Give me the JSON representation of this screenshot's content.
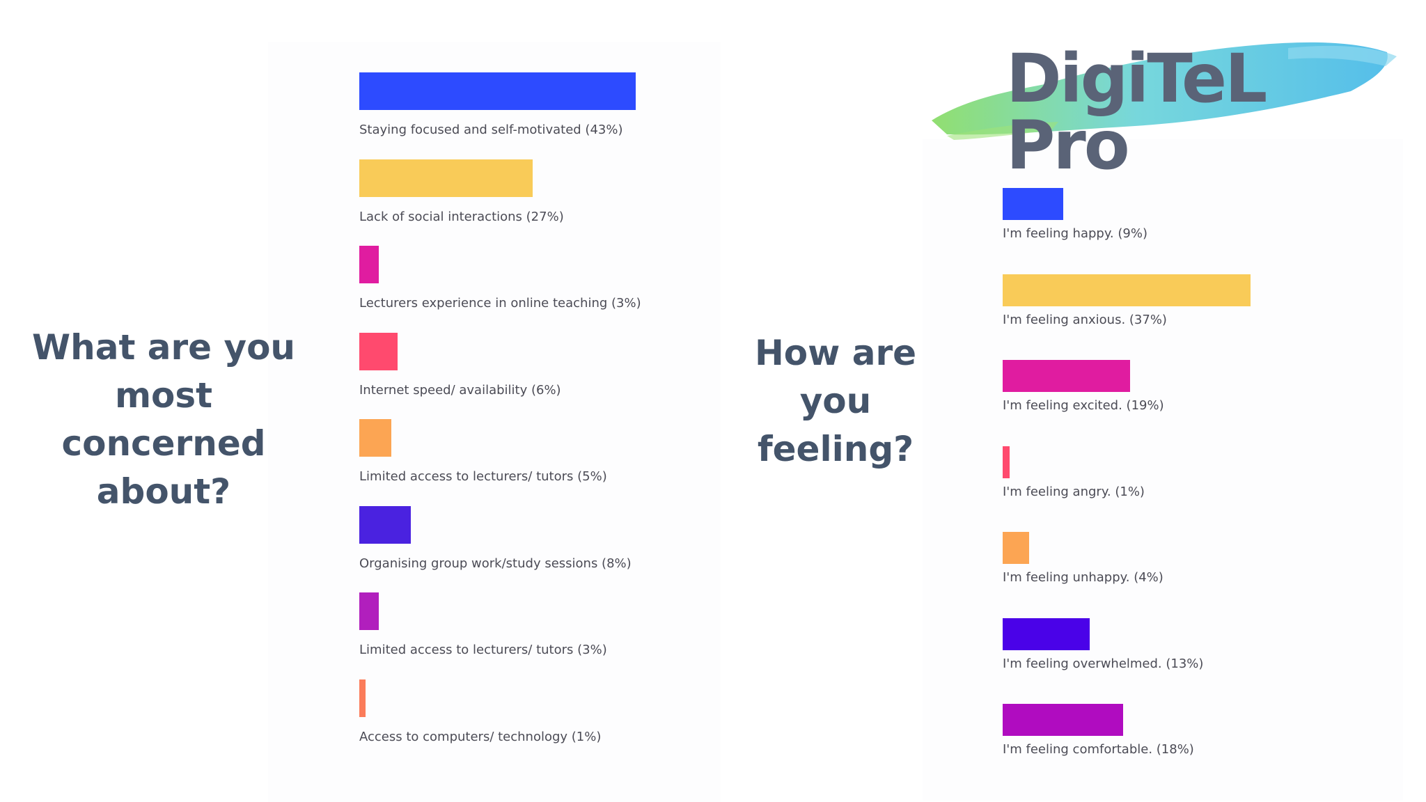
{
  "questions": {
    "left": "What are you most concerned about?",
    "right": "How are you feeling?"
  },
  "logo": {
    "text": "DigiTeL Pro",
    "brush_colors": [
      "#7ed957",
      "#5fd0d6",
      "#37b3e6"
    ]
  },
  "chart_data": [
    {
      "type": "bar",
      "orientation": "horizontal",
      "legend": "labels below each bar",
      "categories": [
        "Staying focused and self-motivated (43%)",
        "Lack of social interactions (27%)",
        "Lecturers experience in online teaching (3%)",
        "Internet speed/ availability (6%)",
        "Limited access to lecturers/ tutors (5%)",
        "Organising group work/study sessions (8%)",
        "Limited access to lecturers/ tutors (3%)",
        "Access to computers/ technology (1%)"
      ],
      "values": [
        43,
        27,
        3,
        6,
        5,
        8,
        3,
        1
      ],
      "colors": [
        "#2d4bff",
        "#f9cb58",
        "#e01ca0",
        "#ff4a6e",
        "#fca553",
        "#4a22e0",
        "#b11fbd",
        "#fb7c5a"
      ]
    },
    {
      "type": "bar",
      "orientation": "horizontal",
      "legend": "labels below each bar",
      "categories": [
        "I'm feeling happy. (9%)",
        "I'm feeling anxious. (37%)",
        "I'm feeling excited. (19%)",
        "I'm feeling angry. (1%)",
        "I'm feeling unhappy. (4%)",
        "I'm feeling overwhelmed. (13%)",
        "I'm feeling comfortable. (18%)"
      ],
      "values": [
        9,
        37,
        19,
        1,
        4,
        13,
        18
      ],
      "colors": [
        "#2d4bff",
        "#f9cb58",
        "#e01ca0",
        "#ff4a6e",
        "#fca553",
        "#4a02e8",
        "#b00cc0"
      ]
    }
  ]
}
